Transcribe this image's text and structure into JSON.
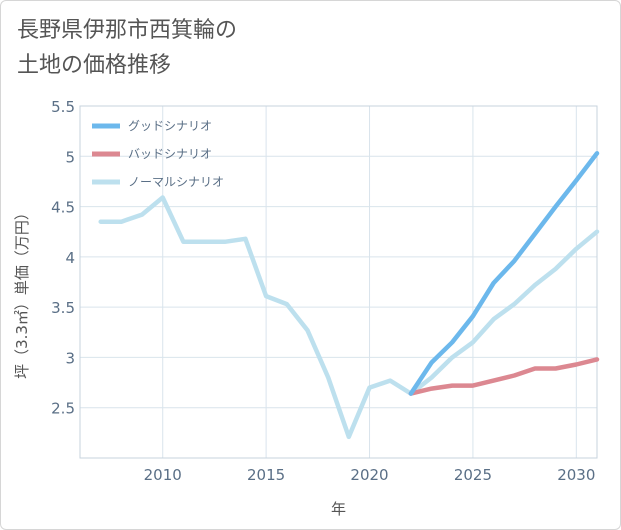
{
  "chart_data": {
    "type": "line",
    "title": "長野県伊那市西箕輪の\n土地の価格推移",
    "xlabel": "年",
    "ylabel": "坪（3.3㎡）単価（万円）",
    "xlim": [
      2006,
      2031
    ],
    "ylim": [
      2.0,
      5.5
    ],
    "x_ticks": [
      2010,
      2015,
      2020,
      2025,
      2030
    ],
    "y_ticks": [
      2.5,
      3,
      3.5,
      4,
      4.5,
      5,
      5.5
    ],
    "x_tick_labels": [
      "2010",
      "2015",
      "2020",
      "2025",
      "2030"
    ],
    "y_tick_labels": [
      "2.5",
      "3",
      "3.5",
      "4",
      "4.5",
      "5",
      "5.5"
    ],
    "grid": true,
    "legend_position": "top-left",
    "series": [
      {
        "name": "グッドシナリオ",
        "color": "#6cb8ec",
        "x": [
          2022,
          2023,
          2024,
          2025,
          2026,
          2027,
          2028,
          2029,
          2030,
          2031
        ],
        "y": [
          2.64,
          2.95,
          3.15,
          3.41,
          3.74,
          3.96,
          4.23,
          4.5,
          4.76,
          5.03
        ]
      },
      {
        "name": "バッドシナリオ",
        "color": "#dc8891",
        "x": [
          2022,
          2023,
          2024,
          2025,
          2026,
          2027,
          2028,
          2029,
          2030,
          2031
        ],
        "y": [
          2.64,
          2.69,
          2.72,
          2.72,
          2.77,
          2.82,
          2.89,
          2.89,
          2.93,
          2.98
        ]
      },
      {
        "name": "ノーマルシナリオ",
        "color": "#bde0ee",
        "x": [
          2007,
          2008,
          2009,
          2010,
          2011,
          2012,
          2013,
          2014,
          2015,
          2016,
          2017,
          2018,
          2019,
          2020,
          2021,
          2022,
          2023,
          2024,
          2025,
          2026,
          2027,
          2028,
          2029,
          2030,
          2031
        ],
        "y": [
          4.35,
          4.35,
          4.42,
          4.59,
          4.15,
          4.15,
          4.15,
          4.18,
          3.61,
          3.53,
          3.27,
          2.8,
          2.21,
          2.7,
          2.77,
          2.64,
          2.8,
          3.0,
          3.15,
          3.38,
          3.53,
          3.72,
          3.88,
          4.08,
          4.25
        ]
      }
    ]
  }
}
